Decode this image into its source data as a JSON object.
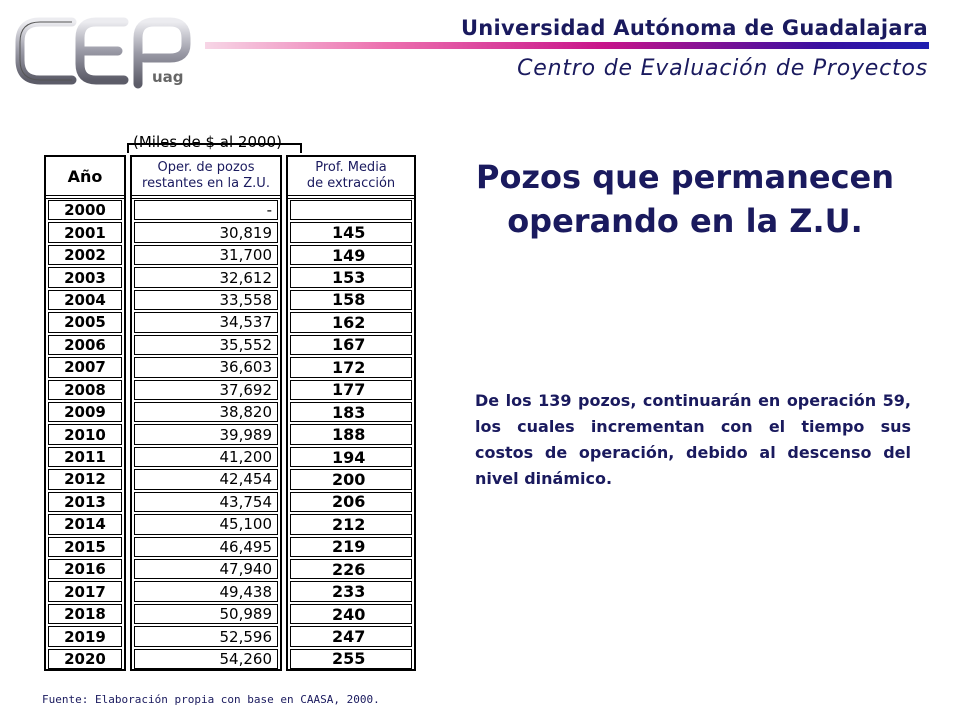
{
  "header": {
    "university": "Universidad Autónoma de Guadalajara",
    "center": "Centro de Evaluación de Proyectos",
    "logo_text": "CEP",
    "logo_subtext": "uag"
  },
  "table": {
    "units_note": "(Miles de $ al 2000)",
    "headers": {
      "year": "Año",
      "oper_line1": "Oper. de pozos",
      "oper_line2": "restantes en la Z.U.",
      "prof_line1": "Prof. Media",
      "prof_line2": "de extracción"
    },
    "rows": [
      {
        "year": "2000",
        "oper": "-",
        "prof": ""
      },
      {
        "year": "2001",
        "oper": "30,819",
        "prof": "145"
      },
      {
        "year": "2002",
        "oper": "31,700",
        "prof": "149"
      },
      {
        "year": "2003",
        "oper": "32,612",
        "prof": "153"
      },
      {
        "year": "2004",
        "oper": "33,558",
        "prof": "158"
      },
      {
        "year": "2005",
        "oper": "34,537",
        "prof": "162"
      },
      {
        "year": "2006",
        "oper": "35,552",
        "prof": "167"
      },
      {
        "year": "2007",
        "oper": "36,603",
        "prof": "172"
      },
      {
        "year": "2008",
        "oper": "37,692",
        "prof": "177"
      },
      {
        "year": "2009",
        "oper": "38,820",
        "prof": "183"
      },
      {
        "year": "2010",
        "oper": "39,989",
        "prof": "188"
      },
      {
        "year": "2011",
        "oper": "41,200",
        "prof": "194"
      },
      {
        "year": "2012",
        "oper": "42,454",
        "prof": "200"
      },
      {
        "year": "2013",
        "oper": "43,754",
        "prof": "206"
      },
      {
        "year": "2014",
        "oper": "45,100",
        "prof": "212"
      },
      {
        "year": "2015",
        "oper": "46,495",
        "prof": "219"
      },
      {
        "year": "2016",
        "oper": "47,940",
        "prof": "226"
      },
      {
        "year": "2017",
        "oper": "49,438",
        "prof": "233"
      },
      {
        "year": "2018",
        "oper": "50,989",
        "prof": "240"
      },
      {
        "year": "2019",
        "oper": "52,596",
        "prof": "247"
      },
      {
        "year": "2020",
        "oper": "54,260",
        "prof": "255"
      }
    ]
  },
  "title": "Pozos que permanecen operando en la Z.U.",
  "paragraph": "De los 139 pozos, continuarán en operación 59, los cuales incrementan con el tiempo sus costos de operación, debido al descenso del nivel dinámico.",
  "source": "Fuente: Elaboración propia con base en CAASA, 2000.",
  "colors": {
    "text_navy": "#1a1a5e",
    "logo_silver": "#9a9aa6",
    "bar_gradient_start": "#f7d6e6",
    "bar_gradient_end": "#1f1fb0"
  }
}
